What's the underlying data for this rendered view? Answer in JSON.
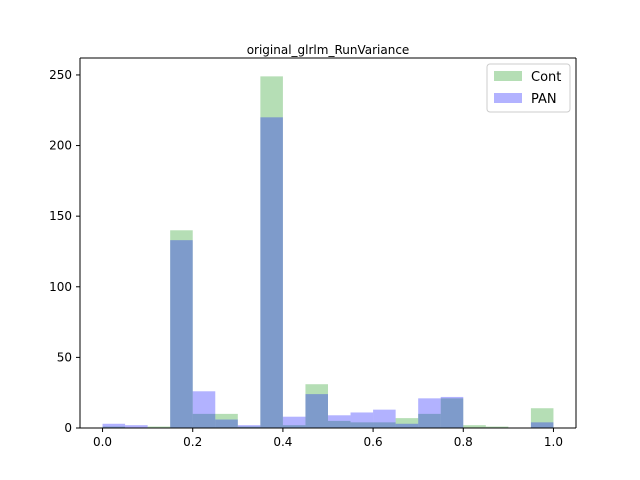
{
  "chart_data": {
    "type": "bar",
    "title": "original_glrlm_RunVariance",
    "xlabel": "",
    "ylabel": "",
    "xlim": [
      -0.05,
      1.05
    ],
    "ylim": [
      0,
      262
    ],
    "xticks": [
      0.0,
      0.2,
      0.4,
      0.6,
      0.8,
      1.0
    ],
    "xtick_labels": [
      "0.0",
      "0.2",
      "0.4",
      "0.6",
      "0.8",
      "1.0"
    ],
    "yticks": [
      0,
      50,
      100,
      150,
      200,
      250
    ],
    "ytick_labels": [
      "0",
      "50",
      "100",
      "150",
      "200",
      "250"
    ],
    "grid": false,
    "legend_position": "top-right",
    "series": [
      {
        "name": "Cont",
        "color": "#2ca02c",
        "alpha": 0.35,
        "bins": [
          {
            "x0": 0.0,
            "x1": 0.05,
            "value": 1
          },
          {
            "x0": 0.05,
            "x1": 0.1,
            "value": 0
          },
          {
            "x0": 0.1,
            "x1": 0.15,
            "value": 1
          },
          {
            "x0": 0.15,
            "x1": 0.2,
            "value": 140
          },
          {
            "x0": 0.2,
            "x1": 0.25,
            "value": 10
          },
          {
            "x0": 0.25,
            "x1": 0.3,
            "value": 10
          },
          {
            "x0": 0.3,
            "x1": 0.35,
            "value": 1
          },
          {
            "x0": 0.35,
            "x1": 0.4,
            "value": 249
          },
          {
            "x0": 0.4,
            "x1": 0.45,
            "value": 2
          },
          {
            "x0": 0.45,
            "x1": 0.5,
            "value": 31
          },
          {
            "x0": 0.5,
            "x1": 0.55,
            "value": 5
          },
          {
            "x0": 0.55,
            "x1": 0.6,
            "value": 4
          },
          {
            "x0": 0.6,
            "x1": 0.65,
            "value": 4
          },
          {
            "x0": 0.65,
            "x1": 0.7,
            "value": 7
          },
          {
            "x0": 0.7,
            "x1": 0.75,
            "value": 10
          },
          {
            "x0": 0.75,
            "x1": 0.8,
            "value": 21
          },
          {
            "x0": 0.8,
            "x1": 0.85,
            "value": 2
          },
          {
            "x0": 0.85,
            "x1": 0.9,
            "value": 1
          },
          {
            "x0": 0.9,
            "x1": 0.95,
            "value": 0
          },
          {
            "x0": 0.95,
            "x1": 1.0,
            "value": 14
          }
        ]
      },
      {
        "name": "PAN",
        "color": "#0000ff",
        "alpha": 0.3,
        "bins": [
          {
            "x0": 0.0,
            "x1": 0.05,
            "value": 3
          },
          {
            "x0": 0.05,
            "x1": 0.1,
            "value": 2
          },
          {
            "x0": 0.1,
            "x1": 0.15,
            "value": 0
          },
          {
            "x0": 0.15,
            "x1": 0.2,
            "value": 133
          },
          {
            "x0": 0.2,
            "x1": 0.25,
            "value": 26
          },
          {
            "x0": 0.25,
            "x1": 0.3,
            "value": 6
          },
          {
            "x0": 0.3,
            "x1": 0.35,
            "value": 2
          },
          {
            "x0": 0.35,
            "x1": 0.4,
            "value": 220
          },
          {
            "x0": 0.4,
            "x1": 0.45,
            "value": 8
          },
          {
            "x0": 0.45,
            "x1": 0.5,
            "value": 24
          },
          {
            "x0": 0.5,
            "x1": 0.55,
            "value": 9
          },
          {
            "x0": 0.55,
            "x1": 0.6,
            "value": 11
          },
          {
            "x0": 0.6,
            "x1": 0.65,
            "value": 13
          },
          {
            "x0": 0.65,
            "x1": 0.7,
            "value": 3
          },
          {
            "x0": 0.7,
            "x1": 0.75,
            "value": 21
          },
          {
            "x0": 0.75,
            "x1": 0.8,
            "value": 22
          },
          {
            "x0": 0.8,
            "x1": 0.85,
            "value": 0
          },
          {
            "x0": 0.85,
            "x1": 0.9,
            "value": 0
          },
          {
            "x0": 0.9,
            "x1": 0.95,
            "value": 0
          },
          {
            "x0": 0.95,
            "x1": 1.0,
            "value": 4
          }
        ]
      }
    ]
  }
}
